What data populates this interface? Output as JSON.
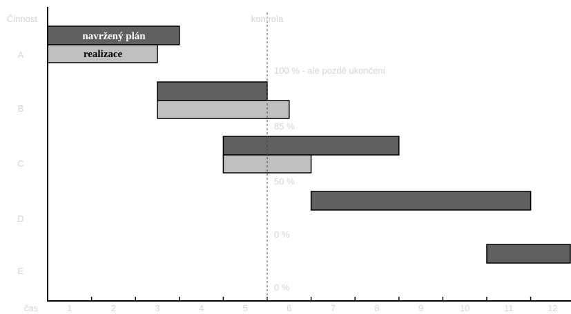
{
  "chart_data": {
    "type": "gantt",
    "y_header": "Činnost",
    "x_header": "čas",
    "control_label": "kontrola",
    "control_x": 5,
    "xlim": [
      0,
      12
    ],
    "x_ticks": [
      "1",
      "2",
      "3",
      "4",
      "5",
      "6",
      "7",
      "8",
      "9",
      "10",
      "11",
      "12"
    ],
    "legend": [
      {
        "name": "navržený plán",
        "color": "#606060"
      },
      {
        "name": "realizace",
        "color": "#c0c0c0"
      }
    ],
    "tasks": [
      {
        "name": "A",
        "plan": [
          0,
          3
        ],
        "actual": [
          0,
          2.5
        ],
        "progress_label": "100 % - ale pozdě ukončení"
      },
      {
        "name": "B",
        "plan": [
          2.5,
          5
        ],
        "actual": [
          2.5,
          5.5
        ],
        "progress_label": "85 %"
      },
      {
        "name": "C",
        "plan": [
          4,
          8
        ],
        "actual": [
          4,
          6
        ],
        "progress_label": "50 %"
      },
      {
        "name": "D",
        "plan": [
          6,
          11
        ],
        "actual": null,
        "progress_label": "0 %"
      },
      {
        "name": "E",
        "plan": [
          10,
          12
        ],
        "actual": null,
        "progress_label": "0 %"
      }
    ]
  }
}
